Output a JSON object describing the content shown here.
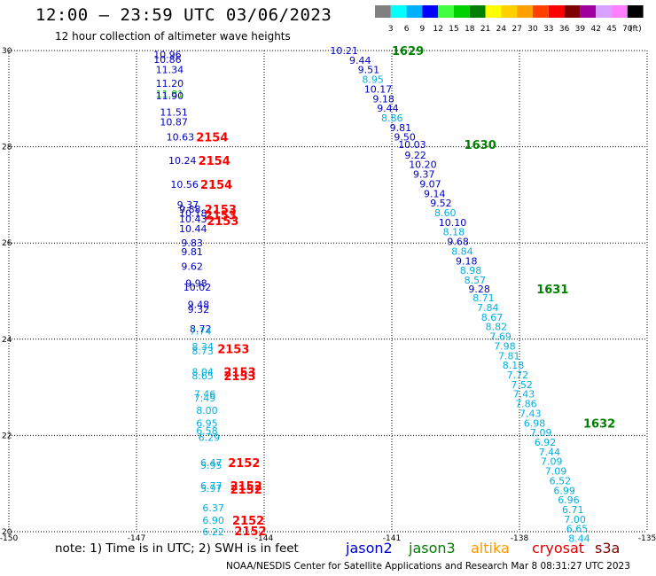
{
  "header": {
    "title": "12:00 – 23:59 UTC 03/06/2023",
    "subtitle": "12 hour collection of altimeter wave heights"
  },
  "color_scale": {
    "labels": [
      "3",
      "6",
      "9",
      "12",
      "15",
      "18",
      "21",
      "24",
      "27",
      "30",
      "33",
      "36",
      "39",
      "42",
      "45",
      "70"
    ],
    "unit": "(ft)",
    "colors": [
      "#808080",
      "#00ffff",
      "#00b0ff",
      "#0000ff",
      "#40ff40",
      "#00d000",
      "#008000",
      "#ffff00",
      "#ffd000",
      "#ffa000",
      "#ff4000",
      "#ff0000",
      "#800000",
      "#a000a0",
      "#d8a0ff",
      "#ff80ff",
      "#000000"
    ]
  },
  "chart_data": {
    "type": "scatter",
    "xlim": [
      -150,
      -135
    ],
    "ylim": [
      20,
      30
    ],
    "x_ticks": [
      "-150",
      "-147",
      "-144",
      "-141",
      "-138",
      "-135"
    ],
    "y_ticks": [
      "20",
      "22",
      "24",
      "26",
      "28",
      "30"
    ],
    "x_tick_values": [
      -150,
      -147,
      -144,
      -141,
      -138,
      -135
    ],
    "y_tick_values": [
      20,
      22,
      24,
      26,
      28,
      30
    ],
    "wave_heights": [
      {
        "lon": -146.6,
        "lat": 29.92,
        "text": "10.96",
        "color": "#0000c0"
      },
      {
        "lon": -146.6,
        "lat": 29.82,
        "text": "10.86",
        "color": "#0000c0"
      },
      {
        "lon": -146.55,
        "lat": 29.6,
        "text": "11.34",
        "color": "#0000c0"
      },
      {
        "lon": -146.55,
        "lat": 29.32,
        "text": "11.20",
        "color": "#0000c0"
      },
      {
        "lon": -146.55,
        "lat": 29.1,
        "text": "11.81",
        "color": "#00c000"
      },
      {
        "lon": -146.55,
        "lat": 29.06,
        "text": "11.90",
        "color": "#0000c0"
      },
      {
        "lon": -146.45,
        "lat": 28.72,
        "text": "11.51",
        "color": "#0000c0"
      },
      {
        "lon": -146.45,
        "lat": 28.52,
        "text": "10.87",
        "color": "#0000c0"
      },
      {
        "lon": -146.3,
        "lat": 28.2,
        "text": "10.63",
        "color": "#0000c0"
      },
      {
        "lon": -146.25,
        "lat": 27.72,
        "text": "10.24",
        "color": "#0000c0"
      },
      {
        "lon": -146.2,
        "lat": 27.22,
        "text": "10.56",
        "color": "#0000c0"
      },
      {
        "lon": -146.05,
        "lat": 26.8,
        "text": "9.37",
        "color": "#0000c0"
      },
      {
        "lon": -146.0,
        "lat": 26.7,
        "text": "9.88",
        "color": "#0000c0"
      },
      {
        "lon": -146.0,
        "lat": 26.62,
        "text": "10.18",
        "color": "#0000c0"
      },
      {
        "lon": -146.0,
        "lat": 26.5,
        "text": "10.43",
        "color": "#0000c0"
      },
      {
        "lon": -146.0,
        "lat": 26.3,
        "text": "10.44",
        "color": "#0000c0"
      },
      {
        "lon": -145.95,
        "lat": 26.0,
        "text": "9.83",
        "color": "#0000c0"
      },
      {
        "lon": -145.95,
        "lat": 25.82,
        "text": "9.81",
        "color": "#0000c0"
      },
      {
        "lon": -145.95,
        "lat": 25.52,
        "text": "9.62",
        "color": "#0000c0"
      },
      {
        "lon": -145.85,
        "lat": 25.17,
        "text": "9.98",
        "color": "#0000c0"
      },
      {
        "lon": -145.9,
        "lat": 25.08,
        "text": "10.02",
        "color": "#0000c0"
      },
      {
        "lon": -145.8,
        "lat": 24.72,
        "text": "9.48",
        "color": "#0000c0"
      },
      {
        "lon": -145.8,
        "lat": 24.62,
        "text": "9.32",
        "color": "#0000c0"
      },
      {
        "lon": -145.75,
        "lat": 24.22,
        "text": "8.72",
        "color": "#0000c0"
      },
      {
        "lon": -145.75,
        "lat": 24.17,
        "text": "7.74",
        "color": "#00b0e0"
      },
      {
        "lon": -145.7,
        "lat": 23.85,
        "text": "8.34",
        "color": "#00b0e0"
      },
      {
        "lon": -145.7,
        "lat": 23.76,
        "text": "8.73",
        "color": "#00b0e0"
      },
      {
        "lon": -145.7,
        "lat": 23.32,
        "text": "8.04",
        "color": "#00b0e0"
      },
      {
        "lon": -145.7,
        "lat": 23.24,
        "text": "8.65",
        "color": "#00b0e0"
      },
      {
        "lon": -145.65,
        "lat": 22.86,
        "text": "7.46",
        "color": "#00b0e0"
      },
      {
        "lon": -145.65,
        "lat": 22.78,
        "text": "7.49",
        "color": "#00b0e0"
      },
      {
        "lon": -145.6,
        "lat": 22.52,
        "text": "8.00",
        "color": "#00b0e0"
      },
      {
        "lon": -145.6,
        "lat": 22.26,
        "text": "6.95",
        "color": "#00b0e0"
      },
      {
        "lon": -145.6,
        "lat": 22.1,
        "text": "6.58",
        "color": "#00b0e0"
      },
      {
        "lon": -145.55,
        "lat": 21.96,
        "text": "6.29",
        "color": "#00b0e0"
      },
      {
        "lon": -145.5,
        "lat": 21.44,
        "text": "6.47",
        "color": "#00b0e0"
      },
      {
        "lon": -145.5,
        "lat": 21.38,
        "text": "5.95",
        "color": "#00b0e0"
      },
      {
        "lon": -145.5,
        "lat": 20.96,
        "text": "6.77",
        "color": "#00b0e0"
      },
      {
        "lon": -145.5,
        "lat": 20.9,
        "text": "5.97",
        "color": "#00b0e0"
      },
      {
        "lon": -145.45,
        "lat": 20.5,
        "text": "6.37",
        "color": "#00b0e0"
      },
      {
        "lon": -145.45,
        "lat": 20.24,
        "text": "6.90",
        "color": "#00b0e0"
      },
      {
        "lon": -145.45,
        "lat": 20.0,
        "text": "6.22",
        "color": "#00b0e0"
      },
      {
        "lon": -142.45,
        "lat": 30.0,
        "text": "10.21",
        "color": "#0000c0"
      },
      {
        "lon": -142.0,
        "lat": 29.8,
        "text": "9.44",
        "color": "#0000c0"
      },
      {
        "lon": -141.8,
        "lat": 29.6,
        "text": "9.51",
        "color": "#0000c0"
      },
      {
        "lon": -141.7,
        "lat": 29.4,
        "text": "8.95",
        "color": "#00b0e0"
      },
      {
        "lon": -141.65,
        "lat": 29.2,
        "text": "10.17",
        "color": "#0000c0"
      },
      {
        "lon": -141.45,
        "lat": 29.0,
        "text": "9.18",
        "color": "#0000c0"
      },
      {
        "lon": -141.35,
        "lat": 28.8,
        "text": "9.44",
        "color": "#0000c0"
      },
      {
        "lon": -141.25,
        "lat": 28.6,
        "text": "8.86",
        "color": "#00b0e0"
      },
      {
        "lon": -141.05,
        "lat": 28.4,
        "text": "9.81",
        "color": "#0000c0"
      },
      {
        "lon": -140.95,
        "lat": 28.2,
        "text": "9.50",
        "color": "#0000c0"
      },
      {
        "lon": -140.85,
        "lat": 28.05,
        "text": "10.03",
        "color": "#0000c0"
      },
      {
        "lon": -140.7,
        "lat": 27.83,
        "text": "9.22",
        "color": "#0000c0"
      },
      {
        "lon": -140.6,
        "lat": 27.63,
        "text": "10.20",
        "color": "#0000c0"
      },
      {
        "lon": -140.5,
        "lat": 27.43,
        "text": "9.37",
        "color": "#0000c0"
      },
      {
        "lon": -140.35,
        "lat": 27.23,
        "text": "9.07",
        "color": "#0000c0"
      },
      {
        "lon": -140.25,
        "lat": 27.03,
        "text": "9.14",
        "color": "#0000c0"
      },
      {
        "lon": -140.1,
        "lat": 26.83,
        "text": "9.52",
        "color": "#0000c0"
      },
      {
        "lon": -140.0,
        "lat": 26.63,
        "text": "8.60",
        "color": "#00b0e0"
      },
      {
        "lon": -139.9,
        "lat": 26.43,
        "text": "10.10",
        "color": "#0000c0"
      },
      {
        "lon": -139.8,
        "lat": 26.23,
        "text": "8.18",
        "color": "#00b0e0"
      },
      {
        "lon": -139.7,
        "lat": 26.03,
        "text": "9.68",
        "color": "#0000c0"
      },
      {
        "lon": -139.6,
        "lat": 25.83,
        "text": "8.84",
        "color": "#00b0e0"
      },
      {
        "lon": -139.5,
        "lat": 25.63,
        "text": "9.18",
        "color": "#0000c0"
      },
      {
        "lon": -139.4,
        "lat": 25.43,
        "text": "8.98",
        "color": "#00b0e0"
      },
      {
        "lon": -139.3,
        "lat": 25.23,
        "text": "8.57",
        "color": "#00b0e0"
      },
      {
        "lon": -139.2,
        "lat": 25.05,
        "text": "9.28",
        "color": "#0000c0"
      },
      {
        "lon": -139.1,
        "lat": 24.86,
        "text": "8.71",
        "color": "#00b0e0"
      },
      {
        "lon": -139.0,
        "lat": 24.66,
        "text": "7.84",
        "color": "#00b0e0"
      },
      {
        "lon": -138.9,
        "lat": 24.46,
        "text": "8.67",
        "color": "#00b0e0"
      },
      {
        "lon": -138.8,
        "lat": 24.26,
        "text": "8.82",
        "color": "#00b0e0"
      },
      {
        "lon": -138.7,
        "lat": 24.06,
        "text": "7.69",
        "color": "#00b0e0"
      },
      {
        "lon": -138.6,
        "lat": 23.86,
        "text": "7.98",
        "color": "#00b0e0"
      },
      {
        "lon": -138.5,
        "lat": 23.66,
        "text": "7.81",
        "color": "#00b0e0"
      },
      {
        "lon": -138.4,
        "lat": 23.46,
        "text": "8.18",
        "color": "#00b0e0"
      },
      {
        "lon": -138.3,
        "lat": 23.26,
        "text": "7.72",
        "color": "#00b0e0"
      },
      {
        "lon": -138.2,
        "lat": 23.06,
        "text": "7.52",
        "color": "#00b0e0"
      },
      {
        "lon": -138.15,
        "lat": 22.86,
        "text": "7.43",
        "color": "#00b0e0"
      },
      {
        "lon": -138.1,
        "lat": 22.66,
        "text": "7.86",
        "color": "#00b0e0"
      },
      {
        "lon": -138.0,
        "lat": 22.46,
        "text": "7.43",
        "color": "#00b0e0"
      },
      {
        "lon": -137.9,
        "lat": 22.26,
        "text": "6.98",
        "color": "#00b0e0"
      },
      {
        "lon": -137.75,
        "lat": 22.06,
        "text": "7.09",
        "color": "#00b0e0"
      },
      {
        "lon": -137.65,
        "lat": 21.86,
        "text": "6.92",
        "color": "#00b0e0"
      },
      {
        "lon": -137.55,
        "lat": 21.66,
        "text": "7.44",
        "color": "#00b0e0"
      },
      {
        "lon": -137.5,
        "lat": 21.46,
        "text": "7.09",
        "color": "#00b0e0"
      },
      {
        "lon": -137.4,
        "lat": 21.26,
        "text": "7.09",
        "color": "#00b0e0"
      },
      {
        "lon": -137.3,
        "lat": 21.06,
        "text": "6.52",
        "color": "#00b0e0"
      },
      {
        "lon": -137.2,
        "lat": 20.86,
        "text": "6.99",
        "color": "#00b0e0"
      },
      {
        "lon": -137.1,
        "lat": 20.66,
        "text": "6.96",
        "color": "#00b0e0"
      },
      {
        "lon": -137.0,
        "lat": 20.46,
        "text": "6.71",
        "color": "#00b0e0"
      },
      {
        "lon": -136.95,
        "lat": 20.26,
        "text": "7.00",
        "color": "#00b0e0"
      },
      {
        "lon": -136.9,
        "lat": 20.06,
        "text": "6.65",
        "color": "#00b0e0"
      },
      {
        "lon": -136.85,
        "lat": 19.86,
        "text": "8.44",
        "color": "#00b0e0"
      }
    ],
    "pass_times": [
      {
        "lon": -141.0,
        "lat": 30.0,
        "text": "1629",
        "color": "#008000"
      },
      {
        "lon": -139.3,
        "lat": 28.05,
        "text": "1630",
        "color": "#008000"
      },
      {
        "lon": -137.6,
        "lat": 25.05,
        "text": "1631",
        "color": "#008000"
      },
      {
        "lon": -136.5,
        "lat": 22.26,
        "text": "1632",
        "color": "#008000"
      },
      {
        "lon": -145.6,
        "lat": 28.2,
        "text": "2154",
        "color": "#ff0000"
      },
      {
        "lon": -145.55,
        "lat": 27.72,
        "text": "2154",
        "color": "#ff0000"
      },
      {
        "lon": -145.5,
        "lat": 27.22,
        "text": "2154",
        "color": "#ff0000"
      },
      {
        "lon": -145.4,
        "lat": 26.7,
        "text": "2153",
        "color": "#ff0000"
      },
      {
        "lon": -145.4,
        "lat": 26.58,
        "text": "2153",
        "color": "#ff0000"
      },
      {
        "lon": -145.35,
        "lat": 26.46,
        "text": "2153",
        "color": "#ff0000"
      },
      {
        "lon": -145.1,
        "lat": 23.8,
        "text": "2153",
        "color": "#ff0000"
      },
      {
        "lon": -144.95,
        "lat": 23.32,
        "text": "2153",
        "color": "#ff0000"
      },
      {
        "lon": -144.95,
        "lat": 23.24,
        "text": "2153",
        "color": "#ff0000"
      },
      {
        "lon": -144.85,
        "lat": 21.44,
        "text": "2152",
        "color": "#ff0000"
      },
      {
        "lon": -144.8,
        "lat": 20.96,
        "text": "2152",
        "color": "#ff0000"
      },
      {
        "lon": -144.8,
        "lat": 20.88,
        "text": "2152",
        "color": "#ff0000"
      },
      {
        "lon": -144.75,
        "lat": 20.24,
        "text": "2152",
        "color": "#ff0000"
      },
      {
        "lon": -144.7,
        "lat": 20.02,
        "text": "2152",
        "color": "#ff0000"
      }
    ]
  },
  "footer": {
    "note": "note: 1) Time is in UTC; 2) SWH is in feet",
    "satellites": [
      {
        "name": "jason2",
        "color": "#0000d0"
      },
      {
        "name": "jason3",
        "color": "#008000"
      },
      {
        "name": "altika",
        "color": "#ff9900"
      },
      {
        "name": "cryosat",
        "color": "#e00000"
      },
      {
        "name": "s3a",
        "color": "#800000"
      }
    ],
    "credit": "NOAA/NESDIS Center for Satellite Applications and Research    Mar  8 08:31:27 UTC 2023"
  }
}
